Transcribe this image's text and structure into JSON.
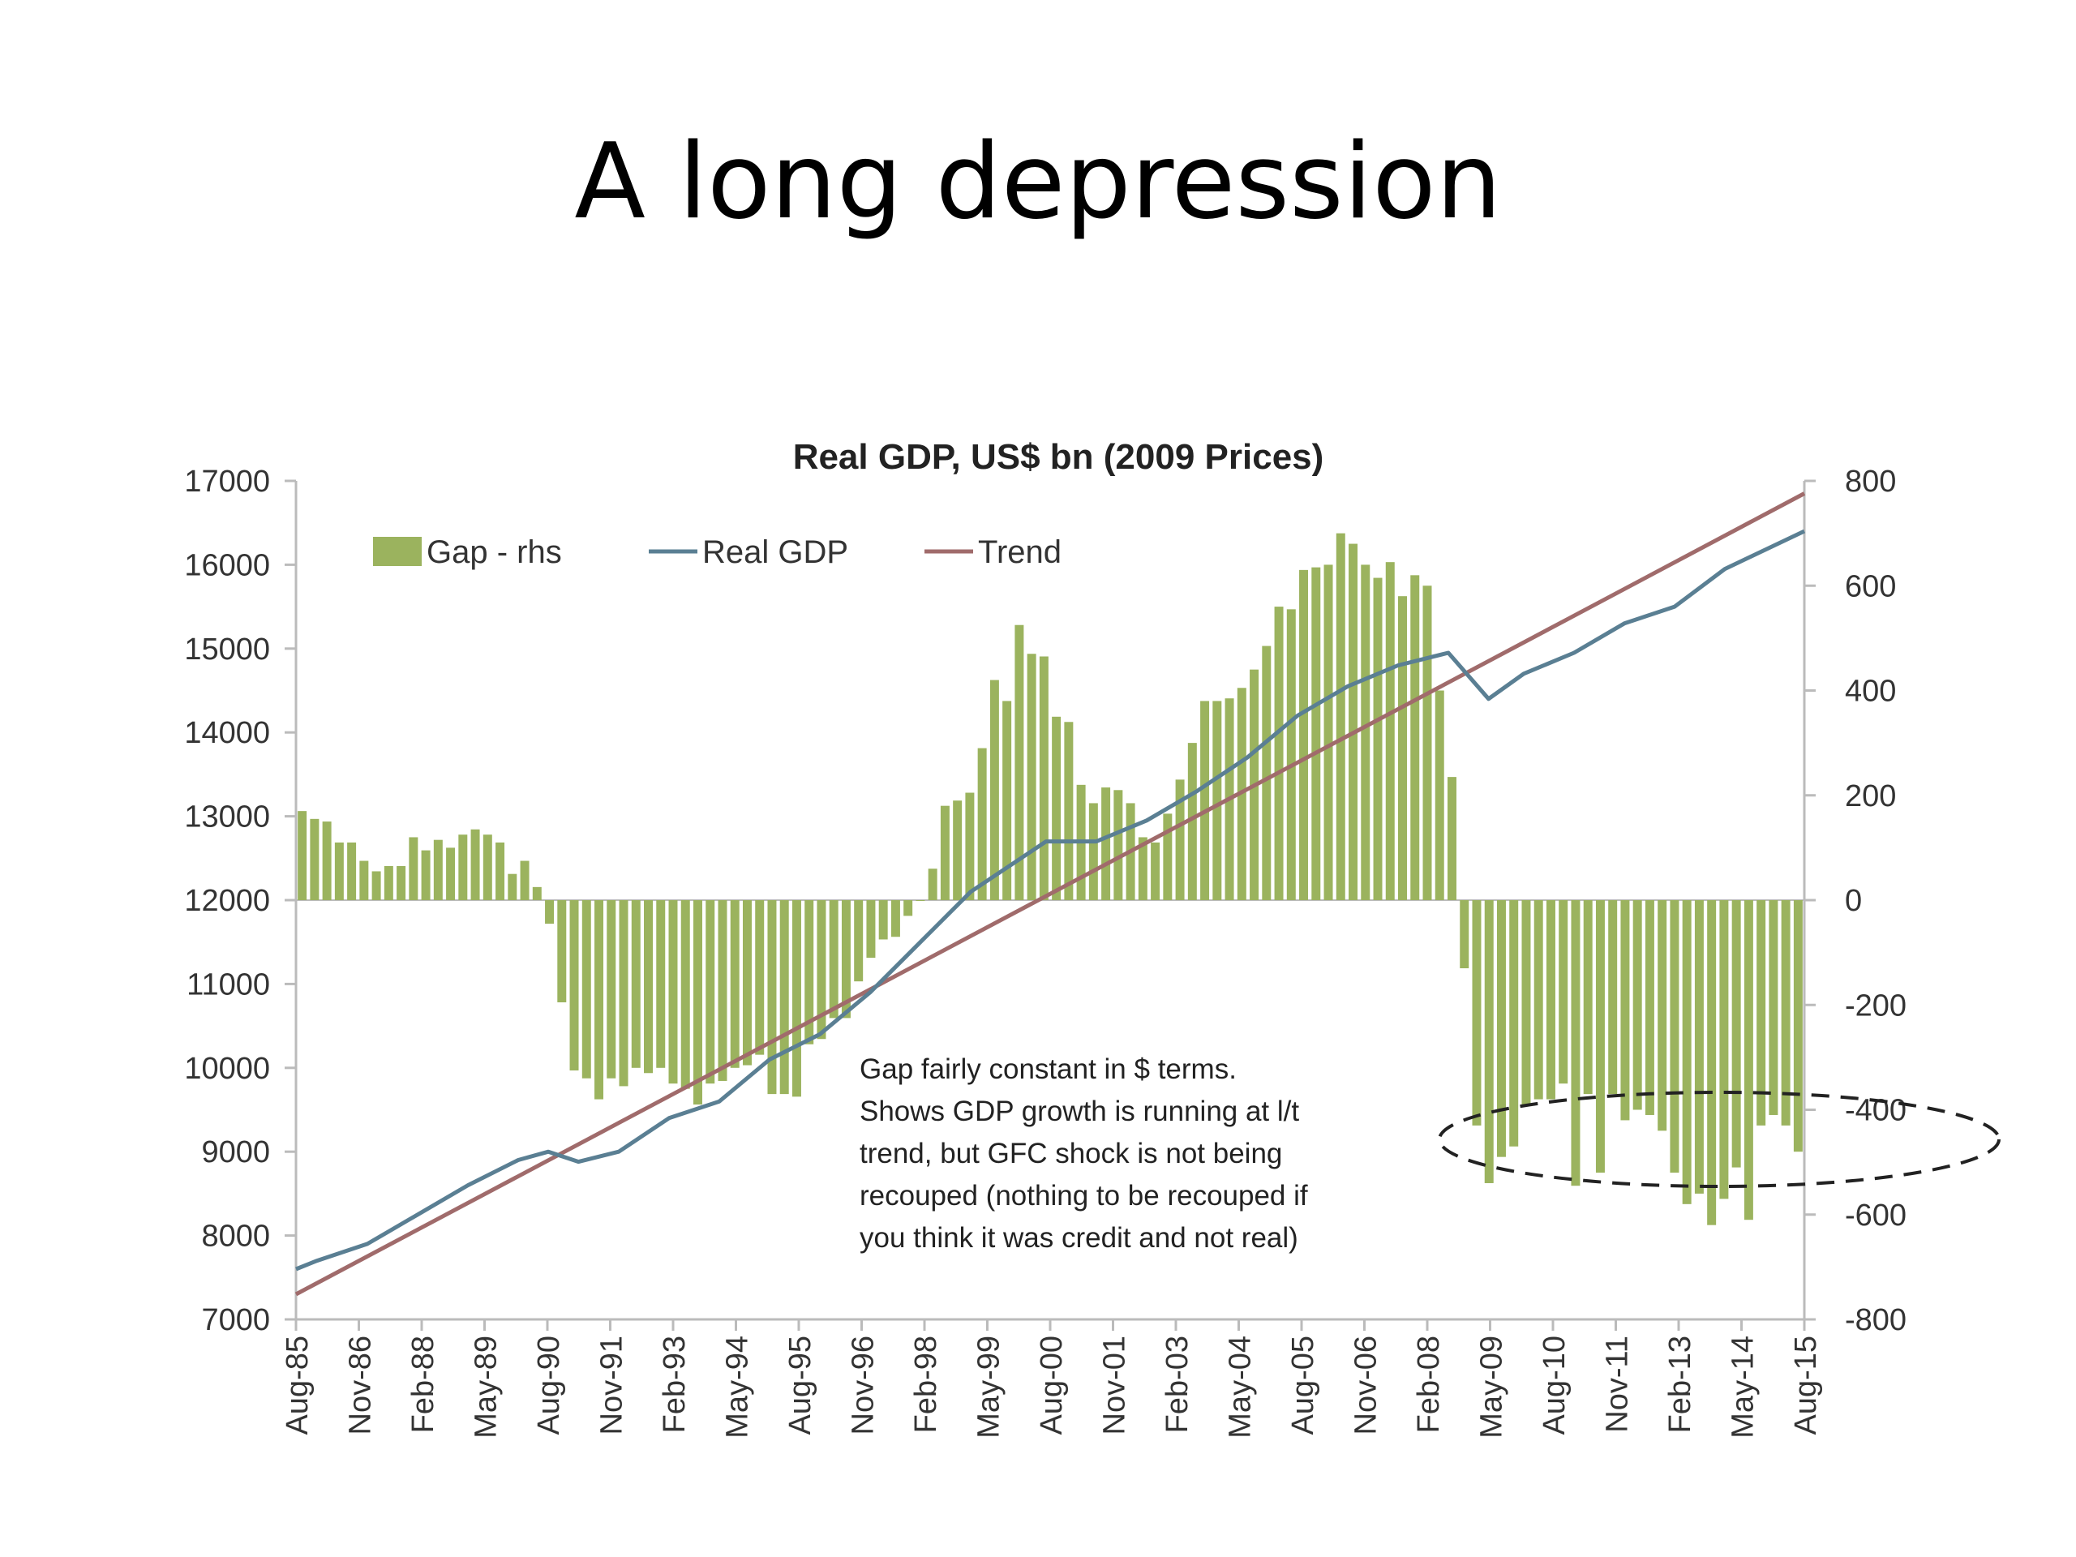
{
  "slide": {
    "title": "A long depression"
  },
  "chart_data": {
    "type": "bar+line",
    "title": "Real GDP, US$ bn (2009 Prices)",
    "y_left": {
      "min": 7000,
      "max": 17000,
      "ticks": [
        "7000",
        "8000",
        "9000",
        "10000",
        "11000",
        "12000",
        "13000",
        "14000",
        "15000",
        "16000",
        "17000"
      ]
    },
    "y_right": {
      "min": -800,
      "max": 800,
      "ticks": [
        "-800",
        "-600",
        "-400",
        "-200",
        "0",
        "200",
        "400",
        "600",
        "800"
      ]
    },
    "x_ticks": [
      "Aug-85",
      "Nov-86",
      "Feb-88",
      "May-89",
      "Aug-90",
      "Nov-91",
      "Feb-93",
      "May-94",
      "Aug-95",
      "Nov-96",
      "Feb-98",
      "May-99",
      "Aug-00",
      "Nov-01",
      "Feb-03",
      "May-04",
      "Aug-05",
      "Nov-06",
      "Feb-08",
      "May-09",
      "Aug-10",
      "Nov-11",
      "Feb-13",
      "May-14",
      "Aug-15"
    ],
    "legend": [
      {
        "name": "Gap - rhs",
        "color": "#9bb35e"
      },
      {
        "name": "Real GDP",
        "color": "#5a7f93"
      },
      {
        "name": "Trend",
        "color": "#a06b6b"
      }
    ],
    "legend_placement": "top-left",
    "gap_bars": [
      170,
      155,
      150,
      110,
      110,
      75,
      55,
      65,
      65,
      120,
      95,
      115,
      100,
      125,
      135,
      125,
      110,
      50,
      75,
      25,
      -45,
      -195,
      -325,
      -340,
      -380,
      -340,
      -355,
      -320,
      -330,
      -320,
      -350,
      -360,
      -390,
      -350,
      -345,
      -320,
      -315,
      -295,
      -370,
      -370,
      -375,
      -275,
      -265,
      -225,
      -225,
      -155,
      -110,
      -75,
      -70,
      -30,
      0,
      60,
      180,
      190,
      205,
      290,
      420,
      380,
      525,
      470,
      465,
      350,
      340,
      220,
      185,
      215,
      210,
      185,
      120,
      110,
      165,
      230,
      300,
      380,
      380,
      385,
      405,
      440,
      485,
      560,
      555,
      630,
      635,
      640,
      700,
      680,
      640,
      615,
      645,
      580,
      620,
      600,
      400,
      235,
      -130,
      -430,
      -540,
      -490,
      -470,
      -390,
      -380,
      -380,
      -350,
      -545,
      -370,
      -520,
      -370,
      -420,
      -400,
      -410,
      -440,
      -520,
      -580,
      -560,
      -620,
      -570,
      -510,
      -610,
      -430,
      -410,
      -430,
      -480
    ],
    "real_gdp": [
      [
        1985.58,
        7600
      ],
      [
        1986,
        7700
      ],
      [
        1987,
        7900
      ],
      [
        1988,
        8250
      ],
      [
        1989,
        8600
      ],
      [
        1990,
        8900
      ],
      [
        1990.6,
        9000
      ],
      [
        1991.2,
        8880
      ],
      [
        1992,
        9000
      ],
      [
        1993,
        9400
      ],
      [
        1994,
        9600
      ],
      [
        1995,
        10100
      ],
      [
        1996,
        10400
      ],
      [
        1997,
        10900
      ],
      [
        1998,
        11500
      ],
      [
        1999,
        12100
      ],
      [
        2000,
        12500
      ],
      [
        2000.5,
        12700
      ],
      [
        2001.5,
        12700
      ],
      [
        2002.5,
        12950
      ],
      [
        2003.5,
        13300
      ],
      [
        2004.5,
        13700
      ],
      [
        2005.5,
        14200
      ],
      [
        2006.5,
        14550
      ],
      [
        2007.5,
        14800
      ],
      [
        2008.5,
        14950
      ],
      [
        2009.3,
        14400
      ],
      [
        2010,
        14700
      ],
      [
        2011,
        14950
      ],
      [
        2012,
        15300
      ],
      [
        2013,
        15500
      ],
      [
        2014,
        15950
      ],
      [
        2015.58,
        16400
      ]
    ],
    "trend": [
      [
        1985.58,
        7300
      ],
      [
        2015.58,
        16850
      ]
    ],
    "annotation": [
      "Gap fairly constant in $ terms.",
      "Shows GDP growth is running at l/t",
      "trend, but GFC shock is not being",
      "recouped (nothing to be recouped if",
      "you think it was credit and not real)"
    ]
  }
}
